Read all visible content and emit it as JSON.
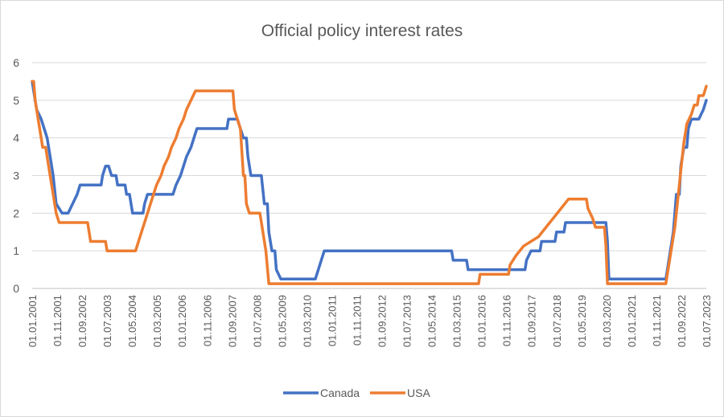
{
  "chart_data": {
    "type": "line",
    "title": "Official policy interest rates",
    "xlabel": "",
    "ylabel": "",
    "ylim": [
      0,
      6
    ],
    "yticks": [
      "0",
      "1",
      "2",
      "3",
      "4",
      "5",
      "6"
    ],
    "xlim": [
      2001.0,
      2023.5
    ],
    "xtick_labels": [
      "01.01.2001",
      "01.11.2001",
      "01.09.2002",
      "01.07.2003",
      "01.05.2004",
      "01.03.2005",
      "01.01.2006",
      "01.11.2006",
      "01.09.2007",
      "01.07.2008",
      "01.05.2009",
      "01.03.2010",
      "01.01.2011",
      "01.11.2011",
      "01.09.2012",
      "01.07.2013",
      "01.05.2014",
      "01.03.2015",
      "01.01.2016",
      "01.11.2016",
      "01.09.2017",
      "01.07.2018",
      "01.05.2019",
      "01.03.2020",
      "01.01.2021",
      "01.11.2021",
      "01.09.2022",
      "01.07.2023"
    ],
    "grid": true,
    "legend_position": "bottom",
    "series": [
      {
        "name": "Canada",
        "color": "#4472c4",
        "points": [
          [
            2001.0,
            5.5
          ],
          [
            2001.15,
            4.75
          ],
          [
            2001.3,
            4.5
          ],
          [
            2001.5,
            4.0
          ],
          [
            2001.7,
            3.0
          ],
          [
            2001.8,
            2.25
          ],
          [
            2002.0,
            2.0
          ],
          [
            2002.2,
            2.0
          ],
          [
            2002.35,
            2.25
          ],
          [
            2002.5,
            2.5
          ],
          [
            2002.6,
            2.75
          ],
          [
            2003.3,
            2.75
          ],
          [
            2003.35,
            3.0
          ],
          [
            2003.45,
            3.25
          ],
          [
            2003.55,
            3.25
          ],
          [
            2003.65,
            3.0
          ],
          [
            2003.8,
            3.0
          ],
          [
            2003.85,
            2.75
          ],
          [
            2004.1,
            2.75
          ],
          [
            2004.15,
            2.5
          ],
          [
            2004.25,
            2.5
          ],
          [
            2004.35,
            2.0
          ],
          [
            2004.7,
            2.0
          ],
          [
            2004.75,
            2.25
          ],
          [
            2004.85,
            2.5
          ],
          [
            2005.7,
            2.5
          ],
          [
            2005.8,
            2.75
          ],
          [
            2005.95,
            3.0
          ],
          [
            2006.05,
            3.25
          ],
          [
            2006.15,
            3.5
          ],
          [
            2006.3,
            3.75
          ],
          [
            2006.4,
            4.0
          ],
          [
            2006.5,
            4.25
          ],
          [
            2007.5,
            4.25
          ],
          [
            2007.55,
            4.5
          ],
          [
            2007.85,
            4.5
          ],
          [
            2007.95,
            4.25
          ],
          [
            2008.05,
            4.0
          ],
          [
            2008.15,
            4.0
          ],
          [
            2008.2,
            3.5
          ],
          [
            2008.3,
            3.0
          ],
          [
            2008.65,
            3.0
          ],
          [
            2008.75,
            2.25
          ],
          [
            2008.85,
            2.25
          ],
          [
            2008.9,
            1.5
          ],
          [
            2009.0,
            1.0
          ],
          [
            2009.1,
            1.0
          ],
          [
            2009.15,
            0.5
          ],
          [
            2009.3,
            0.25
          ],
          [
            2010.45,
            0.25
          ],
          [
            2010.55,
            0.5
          ],
          [
            2010.65,
            0.75
          ],
          [
            2010.75,
            1.0
          ],
          [
            2015.0,
            1.0
          ],
          [
            2015.05,
            0.75
          ],
          [
            2015.5,
            0.75
          ],
          [
            2015.55,
            0.5
          ],
          [
            2017.45,
            0.5
          ],
          [
            2017.5,
            0.75
          ],
          [
            2017.65,
            1.0
          ],
          [
            2017.95,
            1.0
          ],
          [
            2018.0,
            1.25
          ],
          [
            2018.45,
            1.25
          ],
          [
            2018.5,
            1.5
          ],
          [
            2018.75,
            1.5
          ],
          [
            2018.8,
            1.75
          ],
          [
            2020.15,
            1.75
          ],
          [
            2020.2,
            1.25
          ],
          [
            2020.25,
            0.25
          ],
          [
            2022.15,
            0.25
          ],
          [
            2022.2,
            0.5
          ],
          [
            2022.3,
            1.0
          ],
          [
            2022.4,
            1.5
          ],
          [
            2022.5,
            2.5
          ],
          [
            2022.6,
            2.5
          ],
          [
            2022.65,
            3.25
          ],
          [
            2022.75,
            3.75
          ],
          [
            2022.85,
            3.75
          ],
          [
            2022.9,
            4.25
          ],
          [
            2023.0,
            4.5
          ],
          [
            2023.25,
            4.5
          ],
          [
            2023.4,
            4.75
          ],
          [
            2023.5,
            5.0
          ]
        ]
      },
      {
        "name": "USA",
        "color": "#ed7d31",
        "points": [
          [
            2001.0,
            5.5
          ],
          [
            2001.05,
            5.5
          ],
          [
            2001.1,
            5.0
          ],
          [
            2001.2,
            4.5
          ],
          [
            2001.3,
            4.0
          ],
          [
            2001.35,
            3.75
          ],
          [
            2001.45,
            3.75
          ],
          [
            2001.5,
            3.5
          ],
          [
            2001.6,
            3.0
          ],
          [
            2001.7,
            2.5
          ],
          [
            2001.8,
            2.0
          ],
          [
            2001.9,
            1.75
          ],
          [
            2002.85,
            1.75
          ],
          [
            2002.95,
            1.25
          ],
          [
            2003.45,
            1.25
          ],
          [
            2003.5,
            1.0
          ],
          [
            2004.45,
            1.0
          ],
          [
            2004.55,
            1.25
          ],
          [
            2004.65,
            1.5
          ],
          [
            2004.75,
            1.75
          ],
          [
            2004.85,
            2.0
          ],
          [
            2004.95,
            2.25
          ],
          [
            2005.05,
            2.5
          ],
          [
            2005.15,
            2.75
          ],
          [
            2005.3,
            3.0
          ],
          [
            2005.4,
            3.25
          ],
          [
            2005.55,
            3.5
          ],
          [
            2005.65,
            3.75
          ],
          [
            2005.8,
            4.0
          ],
          [
            2005.9,
            4.25
          ],
          [
            2006.05,
            4.5
          ],
          [
            2006.15,
            4.75
          ],
          [
            2006.3,
            5.0
          ],
          [
            2006.45,
            5.25
          ],
          [
            2007.7,
            5.25
          ],
          [
            2007.75,
            4.75
          ],
          [
            2007.85,
            4.5
          ],
          [
            2007.95,
            4.25
          ],
          [
            2008.05,
            3.0
          ],
          [
            2008.1,
            3.0
          ],
          [
            2008.15,
            2.25
          ],
          [
            2008.25,
            2.0
          ],
          [
            2008.6,
            2.0
          ],
          [
            2008.7,
            1.5
          ],
          [
            2008.8,
            1.0
          ],
          [
            2008.9,
            0.125
          ],
          [
            2015.9,
            0.125
          ],
          [
            2015.95,
            0.375
          ],
          [
            2016.9,
            0.375
          ],
          [
            2016.95,
            0.625
          ],
          [
            2017.15,
            0.875
          ],
          [
            2017.4,
            1.125
          ],
          [
            2017.9,
            1.375
          ],
          [
            2018.15,
            1.625
          ],
          [
            2018.4,
            1.875
          ],
          [
            2018.65,
            2.125
          ],
          [
            2018.9,
            2.375
          ],
          [
            2019.5,
            2.375
          ],
          [
            2019.55,
            2.125
          ],
          [
            2019.7,
            1.875
          ],
          [
            2019.8,
            1.625
          ],
          [
            2020.1,
            1.625
          ],
          [
            2020.15,
            1.125
          ],
          [
            2020.2,
            0.125
          ],
          [
            2022.15,
            0.125
          ],
          [
            2022.2,
            0.375
          ],
          [
            2022.3,
            0.875
          ],
          [
            2022.45,
            1.625
          ],
          [
            2022.55,
            2.375
          ],
          [
            2022.65,
            3.125
          ],
          [
            2022.75,
            3.875
          ],
          [
            2022.85,
            4.375
          ],
          [
            2023.0,
            4.625
          ],
          [
            2023.1,
            4.875
          ],
          [
            2023.2,
            4.875
          ],
          [
            2023.25,
            5.125
          ],
          [
            2023.4,
            5.125
          ],
          [
            2023.5,
            5.375
          ]
        ]
      }
    ]
  }
}
